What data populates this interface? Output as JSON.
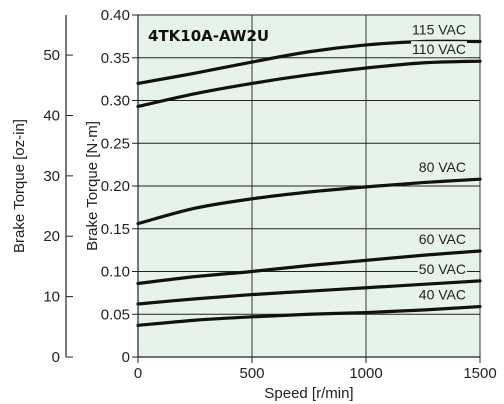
{
  "chart_data": {
    "type": "line",
    "title": "4TK10A-AW2U",
    "xlabel": "Speed [r/min]",
    "ylabel": "Brake Torque [N·m]",
    "ylabel_secondary": "Brake Torque [oz-in]",
    "xlim": [
      0,
      1500
    ],
    "ylim": [
      0,
      0.4
    ],
    "y2lim": [
      0,
      56.64
    ],
    "x_ticks": [
      "0",
      "500",
      "1000",
      "1500"
    ],
    "y_ticks": [
      "0",
      "0.05",
      "0.10",
      "0.15",
      "0.20",
      "0.25",
      "0.30",
      "0.35",
      "0.40"
    ],
    "y2_ticks": [
      "0",
      "10",
      "20",
      "30",
      "40",
      "50"
    ],
    "grid": true,
    "plot_background": "#e6f3ea",
    "line_color": "#111111",
    "series": [
      {
        "name": "115 VAC",
        "x": [
          0,
          250,
          500,
          750,
          1000,
          1250,
          1500
        ],
        "y": [
          0.32,
          0.332,
          0.345,
          0.357,
          0.365,
          0.369,
          0.369
        ]
      },
      {
        "name": "110 VAC",
        "x": [
          0,
          250,
          500,
          750,
          1000,
          1250,
          1500
        ],
        "y": [
          0.293,
          0.308,
          0.32,
          0.33,
          0.338,
          0.344,
          0.346
        ]
      },
      {
        "name": "80 VAC",
        "x": [
          0,
          250,
          500,
          750,
          1000,
          1250,
          1500
        ],
        "y": [
          0.156,
          0.174,
          0.185,
          0.193,
          0.199,
          0.204,
          0.208
        ]
      },
      {
        "name": "60 VAC",
        "x": [
          0,
          250,
          500,
          750,
          1000,
          1250,
          1500
        ],
        "y": [
          0.086,
          0.094,
          0.1,
          0.107,
          0.113,
          0.119,
          0.124
        ]
      },
      {
        "name": "50 VAC",
        "x": [
          0,
          250,
          500,
          750,
          1000,
          1250,
          1500
        ],
        "y": [
          0.062,
          0.068,
          0.073,
          0.077,
          0.081,
          0.085,
          0.089
        ]
      },
      {
        "name": "40 VAC",
        "x": [
          0,
          250,
          500,
          750,
          1000,
          1250,
          1500
        ],
        "y": [
          0.037,
          0.043,
          0.047,
          0.05,
          0.052,
          0.055,
          0.059
        ]
      }
    ]
  }
}
